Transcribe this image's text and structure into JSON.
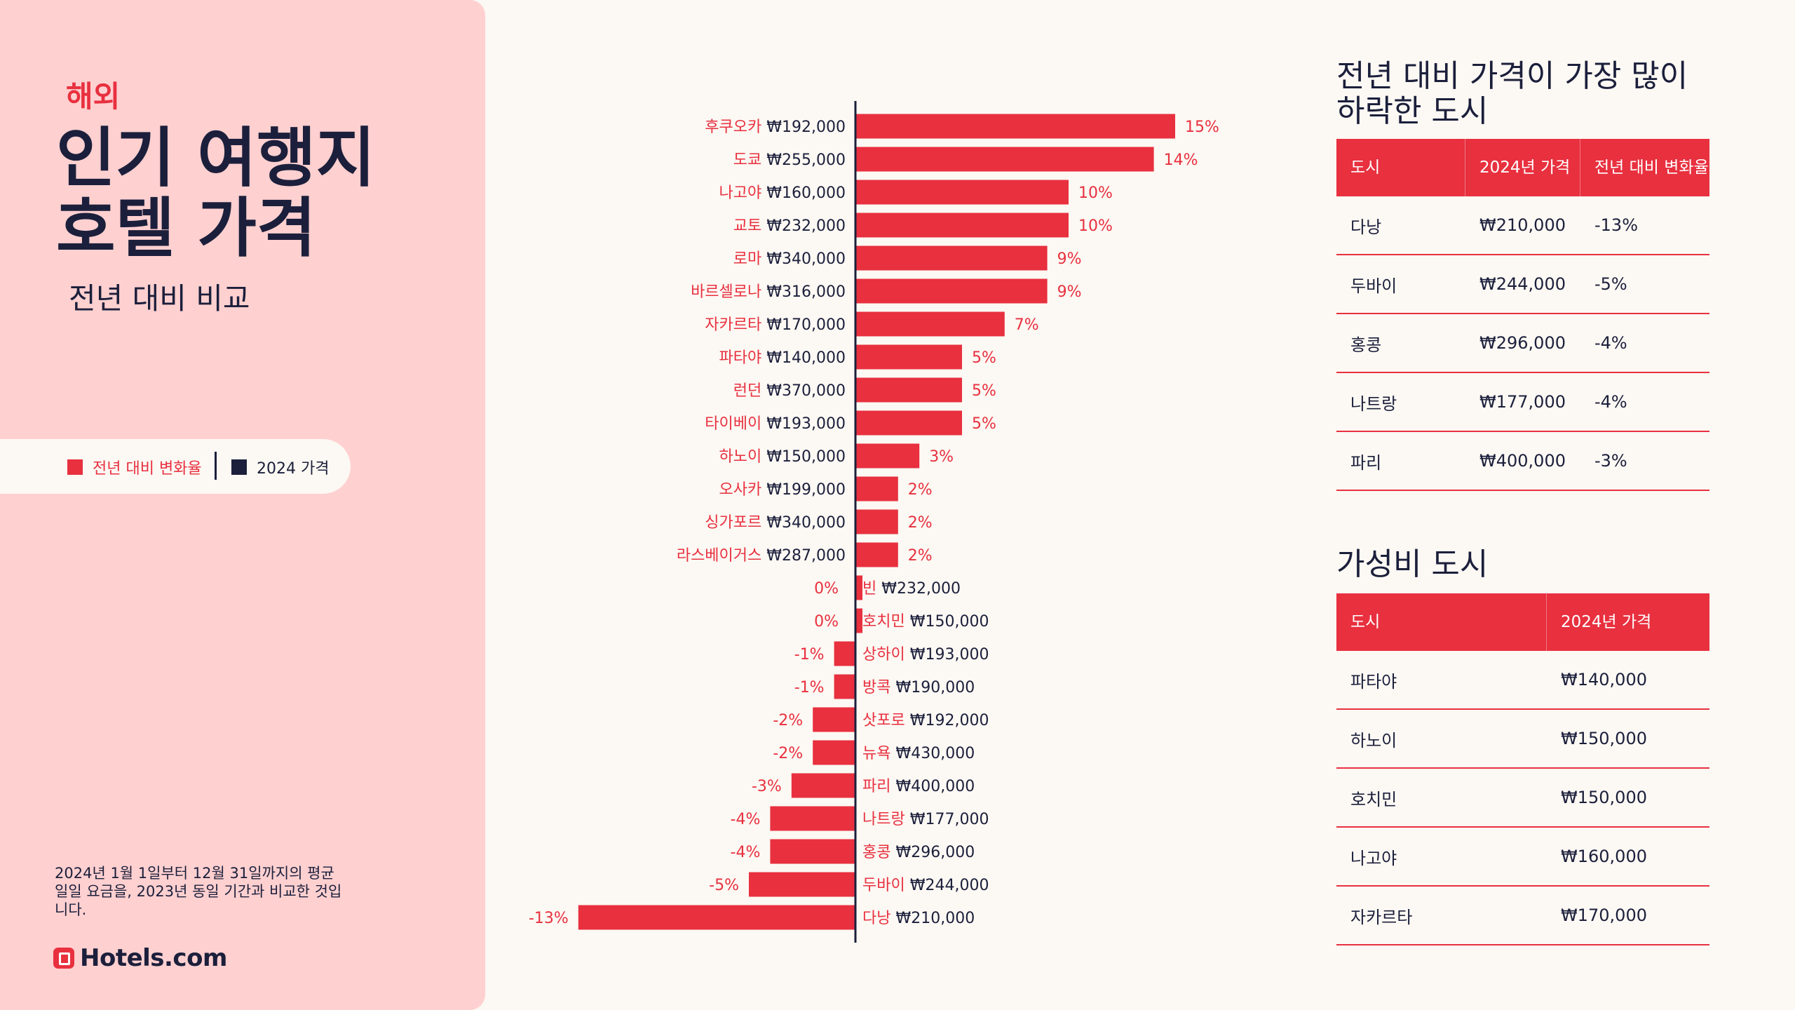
{
  "panel": {
    "eyebrow": "해외",
    "title_line1": "인기 여행지",
    "title_line2": "호텔 가격",
    "subtitle": "전년 대비 비교",
    "legend": [
      {
        "label": "전년 대비 변화율",
        "color": "#e8303f"
      },
      {
        "label": "2024 가격",
        "color": "#1b1f3b"
      }
    ],
    "footnote": "2024년 1월 1일부터 12월 31일까지의 평균 일일 요금을, 2023년 동일 기간과 비교한 것입니다.",
    "logo": "Hotels.com"
  },
  "chart_data": {
    "type": "bar",
    "orientation": "horizontal",
    "categories": [
      "후쿠오카",
      "도쿄",
      "나고야",
      "교토",
      "로마",
      "바르셀로나",
      "자카르타",
      "파타야",
      "런던",
      "타이베이",
      "하노이",
      "오사카",
      "싱가포르",
      "라스베이거스",
      "빈",
      "호치민",
      "상하이",
      "방콕",
      "삿포로",
      "뉴욕",
      "파리",
      "나트랑",
      "홍콩",
      "두바이",
      "다낭"
    ],
    "prices": [
      "₩192,000",
      "₩255,000",
      "₩160,000",
      "₩232,000",
      "₩340,000",
      "₩316,000",
      "₩170,000",
      "₩140,000",
      "₩370,000",
      "₩193,000",
      "₩150,000",
      "₩199,000",
      "₩340,000",
      "₩287,000",
      "₩232,000",
      "₩150,000",
      "₩193,000",
      "₩190,000",
      "₩192,000",
      "₩430,000",
      "₩400,000",
      "₩177,000",
      "₩296,000",
      "₩244,000",
      "₩210,000"
    ],
    "values": [
      15,
      14,
      10,
      10,
      9,
      9,
      7,
      5,
      5,
      5,
      3,
      2,
      2,
      2,
      0,
      0,
      -1,
      -1,
      -2,
      -2,
      -3,
      -4,
      -4,
      -5,
      -13
    ],
    "value_labels": [
      "15%",
      "14%",
      "10%",
      "10%",
      "9%",
      "9%",
      "7%",
      "5%",
      "5%",
      "5%",
      "3%",
      "2%",
      "2%",
      "2%",
      "0%",
      "0%",
      "-1%",
      "-1%",
      "-2%",
      "-2%",
      "-3%",
      "-4%",
      "-4%",
      "-5%",
      "-13%"
    ],
    "colors": {
      "bar": "#e8303f",
      "axis": "#1b1f3b",
      "price": "#1b1f3b"
    }
  },
  "table_drop": {
    "title_line1": "전년 대비 가격이 가장 많이",
    "title_line2": "하락한 도시",
    "headers": [
      "도시",
      "2024년 가격",
      "전년 대비 변화율"
    ],
    "rows": [
      [
        "다낭",
        "₩210,000",
        "-13%"
      ],
      [
        "두바이",
        "₩244,000",
        "-5%"
      ],
      [
        "홍콩",
        "₩296,000",
        "-4%"
      ],
      [
        "나트랑",
        "₩177,000",
        "-4%"
      ],
      [
        "파리",
        "₩400,000",
        "-3%"
      ]
    ]
  },
  "table_value": {
    "title": "가성비 도시",
    "headers": [
      "도시",
      "2024년 가격"
    ],
    "rows": [
      [
        "파타야",
        "₩140,000"
      ],
      [
        "하노이",
        "₩150,000"
      ],
      [
        "호치민",
        "₩150,000"
      ],
      [
        "나고야",
        "₩160,000"
      ],
      [
        "자카르타",
        "₩170,000"
      ]
    ]
  }
}
